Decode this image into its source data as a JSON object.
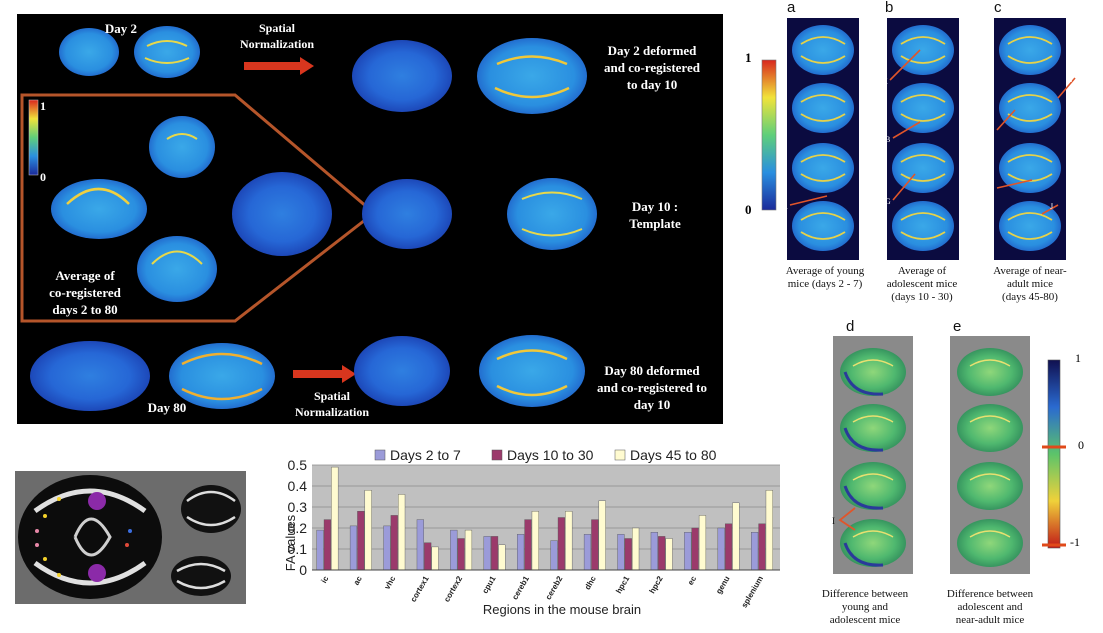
{
  "left_panel": {
    "day2_label": "Day 2",
    "spatial_norm_top_l1": "Spatial",
    "spatial_norm_top_l2": "Normalization",
    "day2_deformed_l1": "Day 2 deformed",
    "day2_deformed_l2": "and co-registered",
    "day2_deformed_l3": "to day 10",
    "colorbar_max": "1",
    "colorbar_min": "0",
    "day10_l1": "Day 10 :",
    "day10_l2": "Template",
    "average_l1": "Average of",
    "average_l2": "co-registered",
    "average_l3": "days 2 to 80",
    "day80_label": "Day 80",
    "spatial_norm_bottom_l1": "Spatial",
    "spatial_norm_bottom_l2": "Normalization",
    "day80_deformed_l1": "Day 80 deformed",
    "day80_deformed_l2": "and co-registered to",
    "day80_deformed_l3": "day 10"
  },
  "right_top": {
    "colorbar_max": "1",
    "colorbar_min": "0",
    "panels": [
      {
        "letter": "a",
        "cap1": "Average of young",
        "cap2": "mice (days 2 - 7)",
        "cap3": "",
        "marks": [
          "A"
        ]
      },
      {
        "letter": "b",
        "cap1": "Average of",
        "cap2": "adolescent  mice",
        "cap3": "(days 10 - 30)",
        "marks": [
          "K",
          "B",
          "G"
        ]
      },
      {
        "letter": "c",
        "cap1": "Average of near-",
        "cap2": "adult mice",
        "cap3": "(days 45-80)",
        "marks": [
          "C",
          "F",
          "E",
          "J"
        ]
      }
    ]
  },
  "right_bottom": {
    "colorbar_max": "1",
    "colorbar_mid": "0",
    "colorbar_min": "-1",
    "panels": [
      {
        "letter": "d",
        "cap1": "Difference between",
        "cap2": "young and",
        "cap3": "adolescent mice",
        "marks": [
          "I"
        ]
      },
      {
        "letter": "e",
        "cap1": "Difference between",
        "cap2": "adolescent and",
        "cap3": "near-adult mice",
        "marks": []
      }
    ]
  },
  "chart_data": {
    "type": "bar",
    "ylabel": "FA  values",
    "xlabel": "Regions in the mouse brain",
    "ylim": [
      0,
      0.5
    ],
    "yticks": [
      "0",
      "0.1",
      "0.2",
      "0.3",
      "0.4",
      "0.5"
    ],
    "legend_position": "top",
    "grid": true,
    "categories": [
      "ic",
      "ac",
      "vhc",
      "cortex1",
      "cortex2",
      "cpu1",
      "cereb1",
      "cereb2",
      "dhc",
      "hpc1",
      "hpc2",
      "ec",
      "genu",
      "splenium"
    ],
    "series": [
      {
        "name": "Days 2 to 7",
        "color": "#9b9bd9",
        "values": [
          0.19,
          0.21,
          0.21,
          0.24,
          0.19,
          0.16,
          0.17,
          0.14,
          0.17,
          0.17,
          0.18,
          0.18,
          0.2,
          0.18
        ]
      },
      {
        "name": "Days 10 to 30",
        "color": "#9b3a6b",
        "values": [
          0.24,
          0.28,
          0.26,
          0.13,
          0.15,
          0.16,
          0.24,
          0.25,
          0.24,
          0.15,
          0.16,
          0.2,
          0.22,
          0.22
        ]
      },
      {
        "name": "Days 45 to 80",
        "color": "#fffbd0",
        "values": [
          0.49,
          0.38,
          0.36,
          0.11,
          0.19,
          0.12,
          0.28,
          0.28,
          0.33,
          0.2,
          0.15,
          0.26,
          0.32,
          0.38
        ]
      }
    ]
  }
}
